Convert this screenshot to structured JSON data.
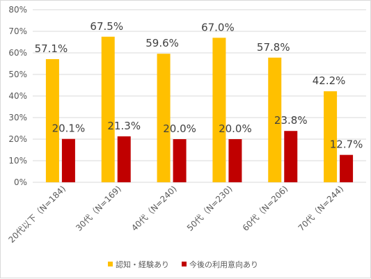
{
  "chart_data": {
    "type": "bar",
    "categories": [
      "20代以下（N=184)",
      "30代（N=169)",
      "40代（N=240)",
      "50代（N=230)",
      "60代（N=206)",
      "70代（N=244)"
    ],
    "series": [
      {
        "name": "認知・経験あり",
        "color": "#FFC000",
        "values": [
          57.1,
          67.5,
          59.6,
          67.0,
          57.8,
          42.2
        ],
        "labels": [
          "57.1%",
          "67.5%",
          "59.6%",
          "67.0%",
          "57.8%",
          "42.2%"
        ]
      },
      {
        "name": "今後の利用意向あり",
        "color": "#C00000",
        "values": [
          20.1,
          21.3,
          20.0,
          20.0,
          23.8,
          12.7
        ],
        "labels": [
          "20.1%",
          "21.3%",
          "20.0%",
          "20.0%",
          "23.8%",
          "12.7%"
        ]
      }
    ],
    "yticks": [
      "0%",
      "10%",
      "20%",
      "30%",
      "40%",
      "50%",
      "60%",
      "70%",
      "80%"
    ],
    "ylim": [
      0,
      80
    ],
    "grid": true,
    "gridColor": "#d9d9d9",
    "legend": "bottom"
  }
}
